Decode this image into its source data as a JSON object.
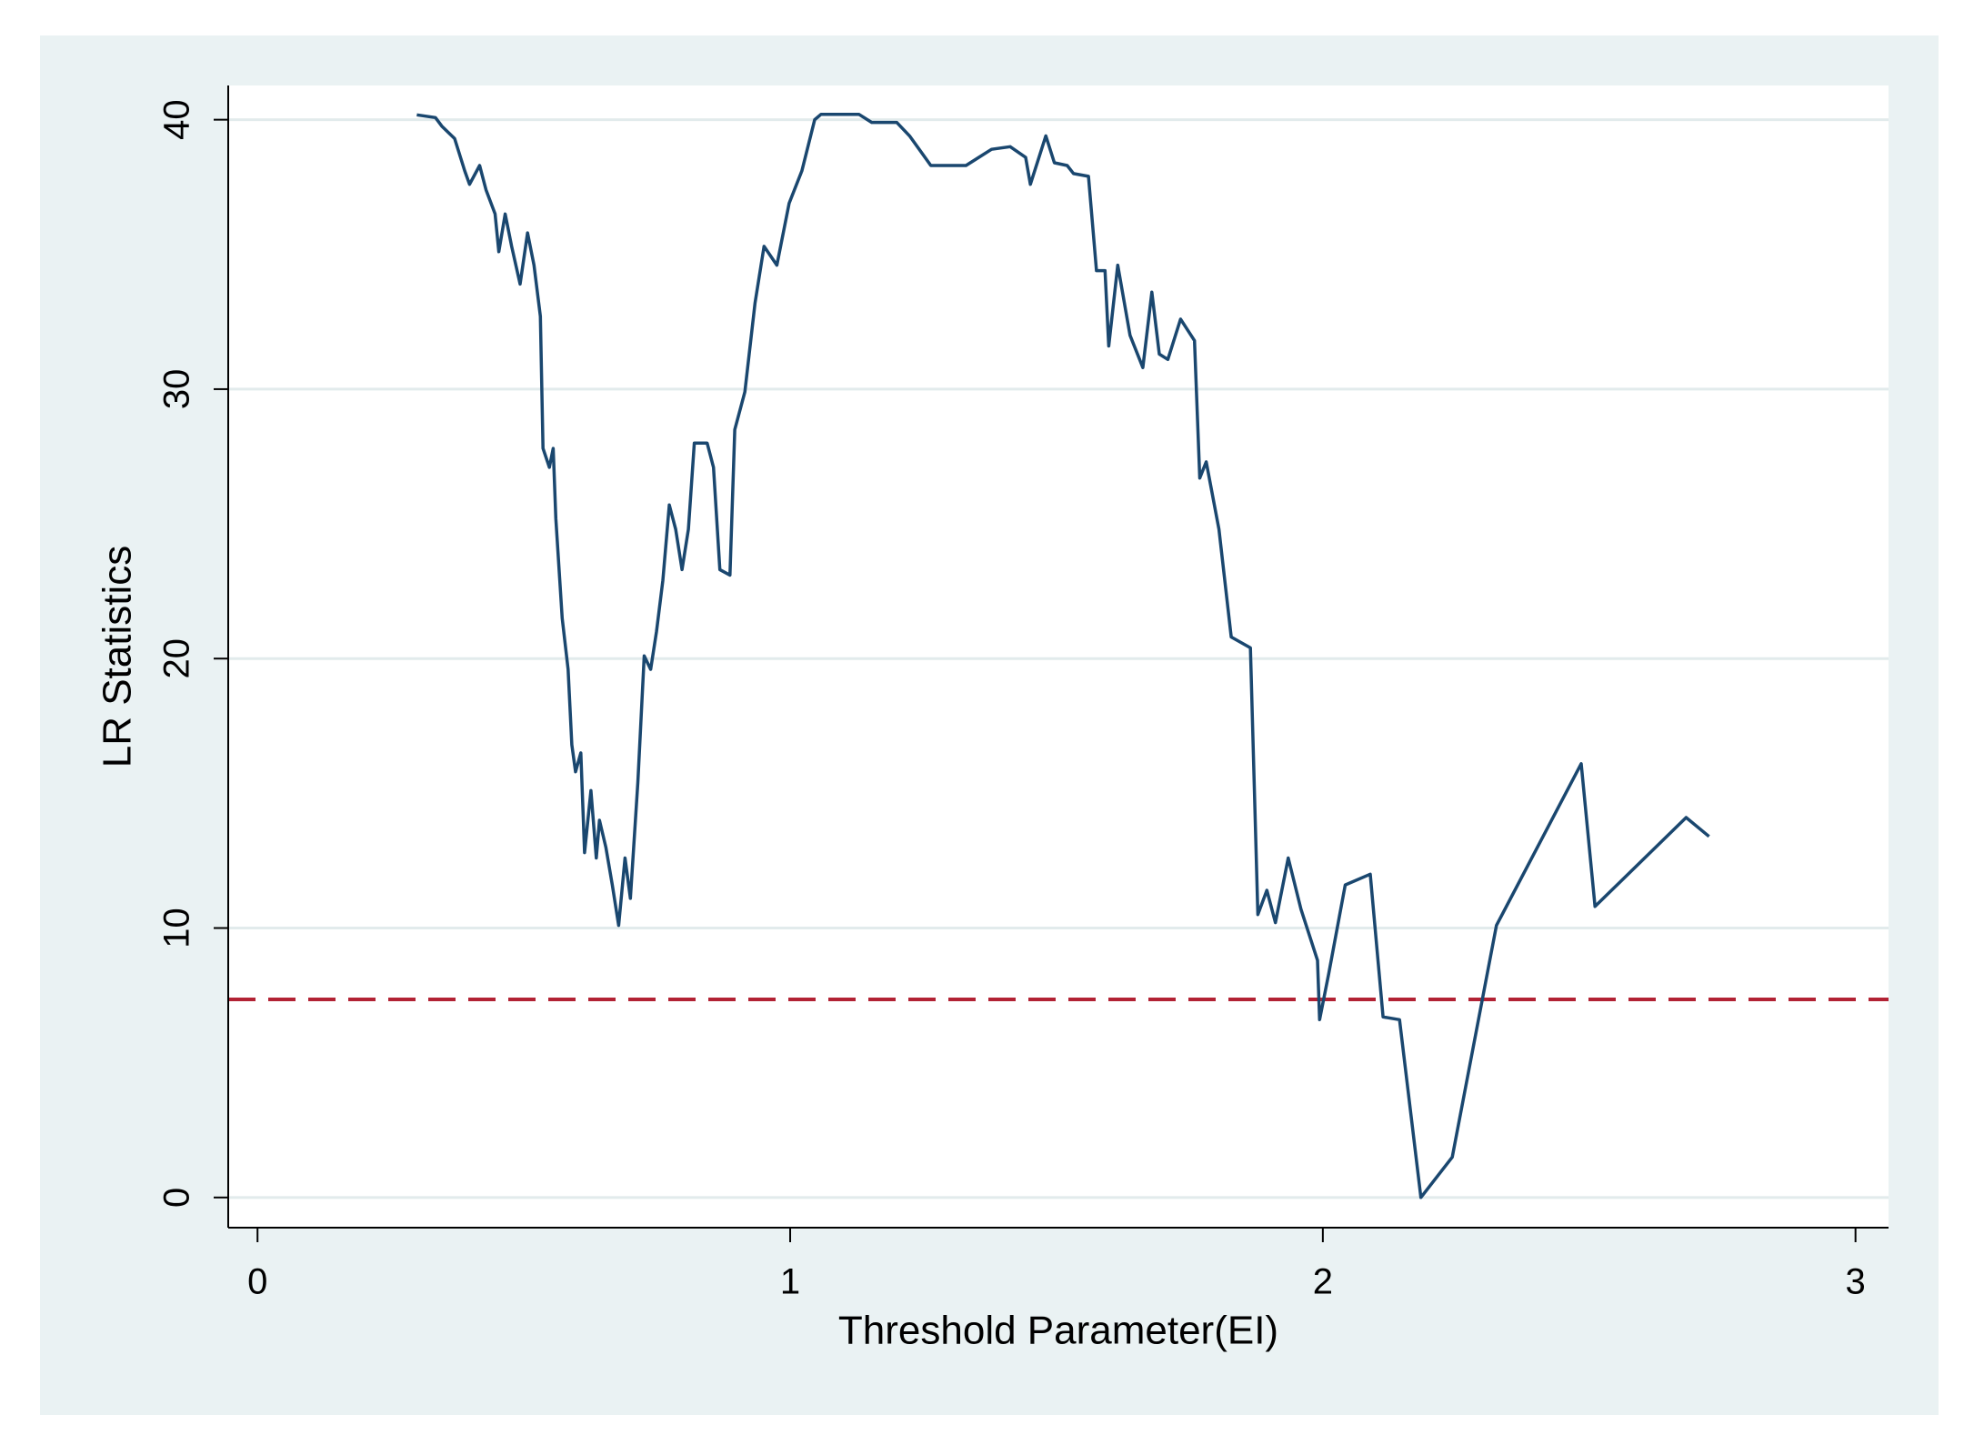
{
  "chart_data": {
    "type": "line",
    "x_label": "Threshold Parameter(EI)",
    "y_label": "LR Statistics",
    "x": [
      0.299,
      0.334,
      0.346,
      0.37,
      0.389,
      0.398,
      0.417,
      0.429,
      0.446,
      0.453,
      0.465,
      0.477,
      0.493,
      0.507,
      0.519,
      0.531,
      0.536,
      0.548,
      0.555,
      0.56,
      0.572,
      0.583,
      0.59,
      0.597,
      0.607,
      0.614,
      0.626,
      0.636,
      0.642,
      0.654,
      0.666,
      0.678,
      0.69,
      0.7,
      0.714,
      0.726,
      0.738,
      0.749,
      0.761,
      0.773,
      0.785,
      0.797,
      0.809,
      0.82,
      0.844,
      0.856,
      0.868,
      0.887,
      0.896,
      0.915,
      0.934,
      0.951,
      0.975,
      0.998,
      1.022,
      1.046,
      1.058,
      1.129,
      1.153,
      1.2,
      1.224,
      1.264,
      1.33,
      1.354,
      1.378,
      1.413,
      1.442,
      1.451,
      1.48,
      1.496,
      1.52,
      1.532,
      1.56,
      1.575,
      1.591,
      1.598,
      1.615,
      1.638,
      1.662,
      1.679,
      1.693,
      1.709,
      1.733,
      1.759,
      1.769,
      1.781,
      1.805,
      1.828,
      1.864,
      1.878,
      1.895,
      1.911,
      1.935,
      1.959,
      1.99,
      1.994,
      2.011,
      2.042,
      2.089,
      2.113,
      2.144,
      2.184,
      2.243,
      2.326,
      2.485,
      2.511,
      2.682,
      2.725
    ],
    "values": [
      40.18,
      40.08,
      39.76,
      39.3,
      38.1,
      37.6,
      38.3,
      37.4,
      36.5,
      35.1,
      36.5,
      35.3,
      33.9,
      35.8,
      34.6,
      32.7,
      27.8,
      27.1,
      27.8,
      25.2,
      21.5,
      19.6,
      16.8,
      15.8,
      16.5,
      12.8,
      15.1,
      12.6,
      14.0,
      13.0,
      11.6,
      10.1,
      12.6,
      11.1,
      15.4,
      20.1,
      19.6,
      21.0,
      22.9,
      25.7,
      24.8,
      23.3,
      24.8,
      28.0,
      28.0,
      27.1,
      23.3,
      23.1,
      28.5,
      29.9,
      33.2,
      35.3,
      34.6,
      36.9,
      38.1,
      40.0,
      40.2,
      40.2,
      39.9,
      39.9,
      39.4,
      38.3,
      38.3,
      38.6,
      38.9,
      39.0,
      38.6,
      37.6,
      39.4,
      38.4,
      38.3,
      38.0,
      37.9,
      34.4,
      34.4,
      31.6,
      34.6,
      32.0,
      30.8,
      33.6,
      31.3,
      31.1,
      32.6,
      31.8,
      26.7,
      27.3,
      24.8,
      20.8,
      20.4,
      10.5,
      11.4,
      10.2,
      12.6,
      10.7,
      8.8,
      6.6,
      8.3,
      11.6,
      12.0,
      6.7,
      6.6,
      0.0,
      1.5,
      10.1,
      16.1,
      10.8,
      14.1,
      13.4
    ],
    "color": "#1a476f",
    "hline": {
      "value": 7.35,
      "color": "#b22234"
    },
    "xlim": [
      -0.055,
      3.062
    ],
    "xticks": [
      0,
      1,
      2,
      3
    ],
    "ylim": [
      -1.12,
      41.27
    ],
    "yticks": [
      0,
      10,
      20,
      30,
      40
    ],
    "grid": true
  }
}
